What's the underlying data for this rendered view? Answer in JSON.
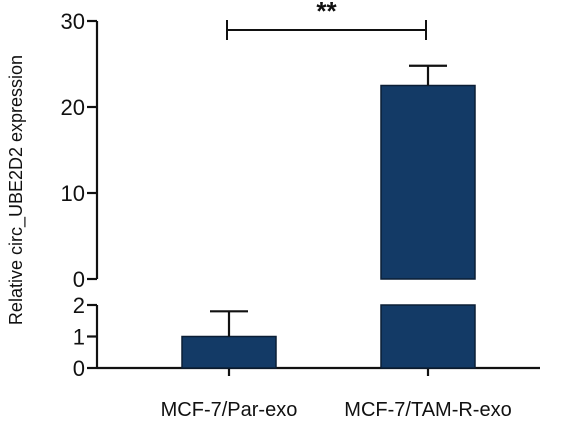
{
  "chart_data": {
    "type": "bar",
    "categories": [
      "MCF-7/Par-exo",
      "MCF-7/TAM-R-exo"
    ],
    "values": [
      1.0,
      22.5
    ],
    "errors": [
      0.8,
      2.3
    ],
    "ylabel": "Relative circ_UBE2D2 expression",
    "y_axis_break": {
      "lower_range": [
        0,
        2
      ],
      "upper_range": [
        0,
        30
      ]
    },
    "lower_ticks": [
      "0",
      "1",
      "2"
    ],
    "upper_ticks": [
      "0",
      "10",
      "20",
      "30"
    ],
    "bar_color": "#133a66",
    "significance": {
      "label": "**",
      "between": [
        0,
        1
      ]
    },
    "grid": false
  }
}
